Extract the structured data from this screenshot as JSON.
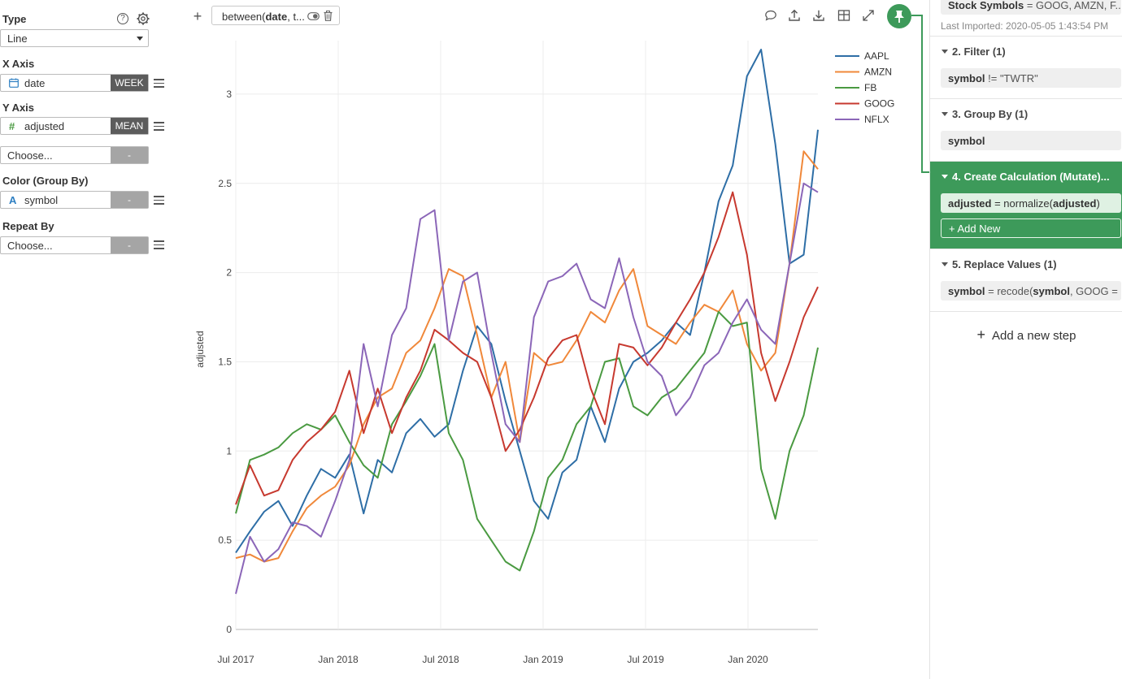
{
  "left": {
    "type_label": "Type",
    "type_value": "Line",
    "x_axis_label": "X Axis",
    "x_field": "date",
    "x_agg": "WEEK",
    "y_axis_label": "Y Axis",
    "y_field": "adjusted",
    "y_agg": "MEAN",
    "y2_placeholder": "Choose...",
    "y2_agg": "-",
    "color_label": "Color (Group By)",
    "color_field": "symbol",
    "color_agg": "-",
    "repeat_label": "Repeat By",
    "repeat_placeholder": "Choose...",
    "repeat_agg": "-",
    "help_icon": "?"
  },
  "toolbar": {
    "add": "+",
    "filter_prefix": "between(",
    "filter_field": "date",
    "filter_suffix": ", t..."
  },
  "steps": {
    "step1_field": "Stock Symbols",
    "step1_rest": " = GOOG, AMZN, F...",
    "last_imported": "Last Imported: 2020-05-05 1:43:54 PM",
    "step2_title": "2. Filter (1)",
    "step2_field": "symbol",
    "step2_rest": " != \"TWTR\"",
    "step3_title": "3. Group By (1)",
    "step3_field": "symbol",
    "step4_title": "4. Create Calculation (Mutate)...",
    "step4_field": "adjusted",
    "step4_mid": " = normalize(",
    "step4_arg": "adjusted",
    "step4_end": ")",
    "add_new": "+ Add New",
    "step5_title": "5. Replace Values (1)",
    "step5_field": "symbol",
    "step5_mid": " = recode(",
    "step5_arg": "symbol",
    "step5_end": ", GOOG = ...",
    "add_step_plus": "+",
    "add_step": "Add a new step"
  },
  "chart_data": {
    "type": "line",
    "ylabel": "adjusted",
    "xlabel": "",
    "ylim": [
      0,
      3.3
    ],
    "yticks": [
      0,
      0.5,
      1,
      1.5,
      2,
      2.5,
      3
    ],
    "ytick_labels": [
      "0",
      "0.5",
      "1",
      "1.5",
      "2",
      "2.5",
      "3"
    ],
    "xtick_labels": [
      "Jul 2017",
      "Jan 2018",
      "Jul 2018",
      "Jan 2019",
      "Jul 2019",
      "Jan 2020"
    ],
    "grid": true,
    "legend_position": "top-right",
    "series": [
      {
        "name": "AAPL",
        "color": "#2e6ea6",
        "values": [
          0.43,
          0.55,
          0.66,
          0.72,
          0.58,
          0.75,
          0.9,
          0.85,
          0.98,
          0.65,
          0.95,
          0.88,
          1.1,
          1.18,
          1.08,
          1.15,
          1.45,
          1.7,
          1.6,
          1.28,
          1.0,
          0.72,
          0.62,
          0.88,
          0.95,
          1.25,
          1.05,
          1.35,
          1.5,
          1.55,
          1.62,
          1.72,
          1.65,
          2.0,
          2.4,
          2.6,
          3.1,
          3.25,
          2.72,
          2.05,
          2.1,
          2.8
        ]
      },
      {
        "name": "AMZN",
        "color": "#f0883a",
        "values": [
          0.4,
          0.42,
          0.38,
          0.4,
          0.55,
          0.68,
          0.75,
          0.8,
          0.92,
          1.15,
          1.3,
          1.35,
          1.55,
          1.62,
          1.8,
          2.02,
          1.98,
          1.65,
          1.3,
          1.5,
          1.05,
          1.55,
          1.48,
          1.5,
          1.62,
          1.78,
          1.72,
          1.9,
          2.02,
          1.7,
          1.65,
          1.6,
          1.72,
          1.82,
          1.78,
          1.9,
          1.6,
          1.45,
          1.55,
          2.05,
          2.68,
          2.58
        ]
      },
      {
        "name": "FB",
        "color": "#4a9a41",
        "values": [
          0.65,
          0.95,
          0.98,
          1.02,
          1.1,
          1.15,
          1.12,
          1.2,
          1.05,
          0.92,
          0.85,
          1.15,
          1.28,
          1.42,
          1.6,
          1.1,
          0.95,
          0.62,
          0.5,
          0.38,
          0.33,
          0.55,
          0.85,
          0.95,
          1.15,
          1.25,
          1.5,
          1.52,
          1.25,
          1.2,
          1.3,
          1.35,
          1.45,
          1.55,
          1.78,
          1.7,
          1.72,
          0.9,
          0.62,
          1.0,
          1.2,
          1.58
        ]
      },
      {
        "name": "GOOG",
        "color": "#c7392f",
        "values": [
          0.7,
          0.92,
          0.75,
          0.78,
          0.95,
          1.05,
          1.12,
          1.22,
          1.45,
          1.1,
          1.35,
          1.1,
          1.3,
          1.45,
          1.68,
          1.62,
          1.55,
          1.5,
          1.3,
          1.0,
          1.12,
          1.3,
          1.52,
          1.62,
          1.65,
          1.35,
          1.15,
          1.6,
          1.58,
          1.48,
          1.58,
          1.72,
          1.85,
          2.0,
          2.2,
          2.45,
          2.1,
          1.55,
          1.28,
          1.5,
          1.75,
          1.92
        ]
      },
      {
        "name": "NFLX",
        "color": "#8b66b8",
        "values": [
          0.2,
          0.52,
          0.38,
          0.45,
          0.6,
          0.58,
          0.52,
          0.72,
          0.95,
          1.6,
          1.25,
          1.65,
          1.8,
          2.3,
          2.35,
          1.62,
          1.95,
          2.0,
          1.55,
          1.15,
          1.05,
          1.75,
          1.95,
          1.98,
          2.05,
          1.85,
          1.8,
          2.08,
          1.75,
          1.5,
          1.42,
          1.2,
          1.3,
          1.48,
          1.55,
          1.72,
          1.85,
          1.68,
          1.6,
          2.05,
          2.5,
          2.45
        ]
      }
    ]
  }
}
